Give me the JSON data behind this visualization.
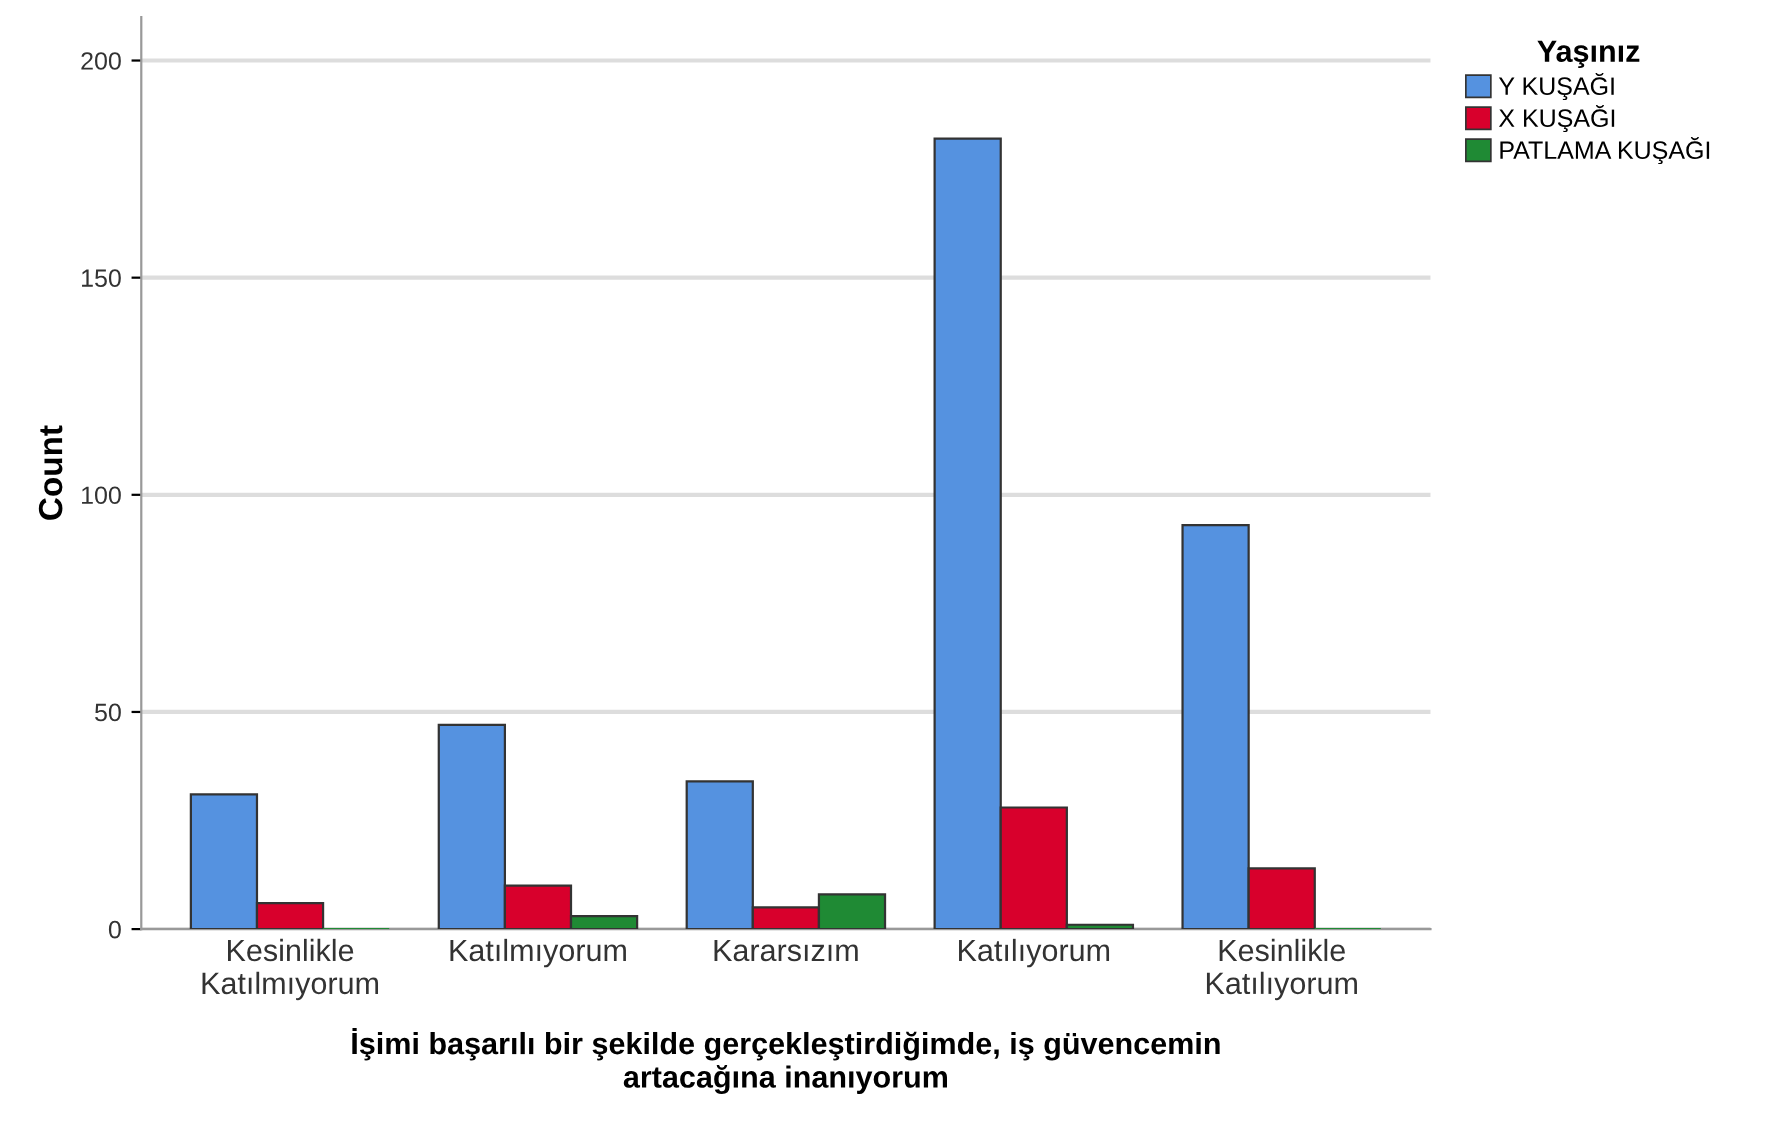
{
  "chart_data": {
    "type": "bar",
    "xlabel": "İşimi başarılı bir şekilde gerçekleştirdiğimde, iş güvencemin\nartacağına inanıyorum",
    "ylabel": "Count",
    "legend_title": "Yaşınız",
    "categories": [
      "Kesinlikle\nKatılmıyorum",
      "Katılmıyorum",
      "Kararsızım",
      "Katılıyorum",
      "Kesinlikle\nKatılıyorum"
    ],
    "series": [
      {
        "name": "Y KUŞAĞI",
        "color": "#5592e0",
        "values": [
          31,
          47,
          34,
          182,
          93
        ]
      },
      {
        "name": "X KUŞAĞI",
        "color": "#d8002c",
        "values": [
          6,
          10,
          5,
          28,
          14
        ]
      },
      {
        "name": "PATLAMA KUŞAĞI",
        "color": "#1f8a34",
        "values": [
          0,
          3,
          8,
          1,
          0
        ]
      }
    ],
    "ylim": [
      0,
      210
    ],
    "yticks": [
      0,
      50,
      100,
      150,
      200
    ],
    "grid": "y",
    "legend": "top right"
  }
}
